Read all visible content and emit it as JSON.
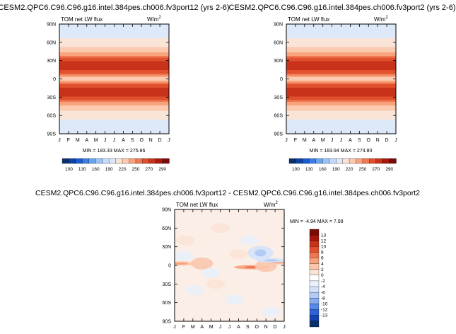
{
  "colors": {
    "diverging_palette": [
      "#08306b",
      "#0c41a6",
      "#1b5bd0",
      "#3a7ee4",
      "#6aa3ee",
      "#9cc2f4",
      "#c3dbf8",
      "#dde9f9",
      "#f9e4d7",
      "#fbcab0",
      "#f8a37c",
      "#f07852",
      "#e0502d",
      "#c8321a",
      "#a8180d",
      "#7a0a05"
    ],
    "anom_palette": [
      "#08306b",
      "#1643b0",
      "#2e62d6",
      "#5588e8",
      "#86abef",
      "#b3cbf5",
      "#d4e2f8",
      "#e9f0fa",
      "#ffffff",
      "#fbe3d6",
      "#fac6ad",
      "#f7a07c",
      "#ee7652",
      "#e0502e",
      "#c9331a",
      "#a3160b",
      "#7c0a04"
    ]
  },
  "chart_data": [
    {
      "type": "heatmap",
      "title": "CESM2.QPC6.C96.C96.g16.intel.384pes.ch006.fv3port12 (yrs 2-6)",
      "left_label": "TOM net LW flux",
      "units_base": "W/m",
      "units_exp": "2",
      "x": [
        "J",
        "F",
        "M",
        "A",
        "M",
        "J",
        "J",
        "A",
        "S",
        "O",
        "N",
        "D",
        "J"
      ],
      "y": [
        "90N",
        "60N",
        "30N",
        "0",
        "30S",
        "60S",
        "90S"
      ],
      "ylim": [
        -90,
        90
      ],
      "stats": "MIN = 183.33  MAX = 275.86",
      "colorbar_ticks": [
        "100",
        "130",
        "160",
        "190",
        "220",
        "250",
        "270",
        "290"
      ],
      "profile": {
        "lat": [
          -90,
          -80,
          -70,
          -60,
          -50,
          -40,
          -30,
          -25,
          -20,
          -15,
          -10,
          -5,
          0,
          5,
          10,
          15,
          20,
          25,
          30,
          40,
          50,
          60,
          70,
          80,
          90
        ],
        "value": [
          190,
          196,
          203,
          210,
          222,
          245,
          270,
          275,
          276,
          272,
          262,
          248,
          228,
          247,
          262,
          272,
          276,
          275,
          270,
          246,
          222,
          210,
          203,
          196,
          190
        ]
      }
    },
    {
      "type": "heatmap",
      "title": "CESM2.QPC6.C96.C96.g16.intel.384pes.ch006.fv3port2 (yrs 2-6)",
      "left_label": "TOM net LW flux",
      "units_base": "W/m",
      "units_exp": "2",
      "x": [
        "J",
        "F",
        "M",
        "A",
        "M",
        "J",
        "J",
        "A",
        "S",
        "O",
        "N",
        "D",
        "J"
      ],
      "y": [
        "90N",
        "60N",
        "30N",
        "0",
        "30S",
        "60S",
        "90S"
      ],
      "ylim": [
        -90,
        90
      ],
      "stats": "MIN = 183.94  MAX = 274.80",
      "colorbar_ticks": [
        "100",
        "130",
        "160",
        "190",
        "220",
        "250",
        "270",
        "290"
      ],
      "profile": {
        "lat": [
          -90,
          -80,
          -70,
          -60,
          -50,
          -40,
          -30,
          -25,
          -20,
          -15,
          -10,
          -5,
          0,
          5,
          10,
          15,
          20,
          25,
          30,
          40,
          50,
          60,
          70,
          80,
          90
        ],
        "value": [
          190,
          196,
          203,
          210,
          222,
          245,
          270,
          275,
          275,
          272,
          262,
          248,
          228,
          247,
          262,
          272,
          275,
          275,
          270,
          246,
          222,
          210,
          203,
          196,
          190
        ]
      }
    },
    {
      "type": "heatmap",
      "title": "CESM2.QPC6.C96.C96.g16.intel.384pes.ch006.fv3port12 - CESM2.QPC6.C96.C96.g16.intel.384pes.ch006.fv3port2",
      "left_label": "TOM net LW flux",
      "units_base": "W/m",
      "units_exp": "2",
      "x": [
        "J",
        "F",
        "M",
        "A",
        "M",
        "J",
        "J",
        "A",
        "S",
        "O",
        "N",
        "D",
        "J"
      ],
      "y": [
        "90N",
        "60N",
        "30N",
        "0",
        "30S",
        "60S",
        "90S"
      ],
      "ylim": [
        -90,
        90
      ],
      "stats": "MIN = -4.94  MAX =  7.99",
      "colorbar_ticks": [
        "13",
        "12",
        "10",
        "8",
        "6",
        "4",
        "2",
        "0",
        "-2",
        "-4",
        "-6",
        "-8",
        "-10",
        "-12",
        "-13"
      ],
      "anomalies": [
        {
          "month": 0.7,
          "lat": 3,
          "value": 4
        },
        {
          "month": 3.0,
          "lat": 3,
          "value": 3
        },
        {
          "month": 8.5,
          "lat": -3,
          "value": 6
        },
        {
          "month": 10.0,
          "lat": -1,
          "value": 3
        },
        {
          "month": 11.4,
          "lat": 5,
          "value": 4
        },
        {
          "month": 7.0,
          "lat": 18,
          "value": 2
        },
        {
          "month": 1.2,
          "lat": 40,
          "value": 2
        },
        {
          "month": 5.0,
          "lat": 60,
          "value": 2
        },
        {
          "month": 4.5,
          "lat": -30,
          "value": 2
        },
        {
          "month": 9.4,
          "lat": 20,
          "value": -4
        },
        {
          "month": 10.6,
          "lat": 8,
          "value": -4
        },
        {
          "month": 8.2,
          "lat": 40,
          "value": -2
        },
        {
          "month": 2.2,
          "lat": -40,
          "value": -2
        },
        {
          "month": 4.0,
          "lat": -12,
          "value": -2
        },
        {
          "month": 6.5,
          "lat": -55,
          "value": -2
        },
        {
          "month": 10.5,
          "lat": -75,
          "value": -2
        },
        {
          "month": 1.0,
          "lat": 15,
          "value": -2
        }
      ]
    }
  ]
}
